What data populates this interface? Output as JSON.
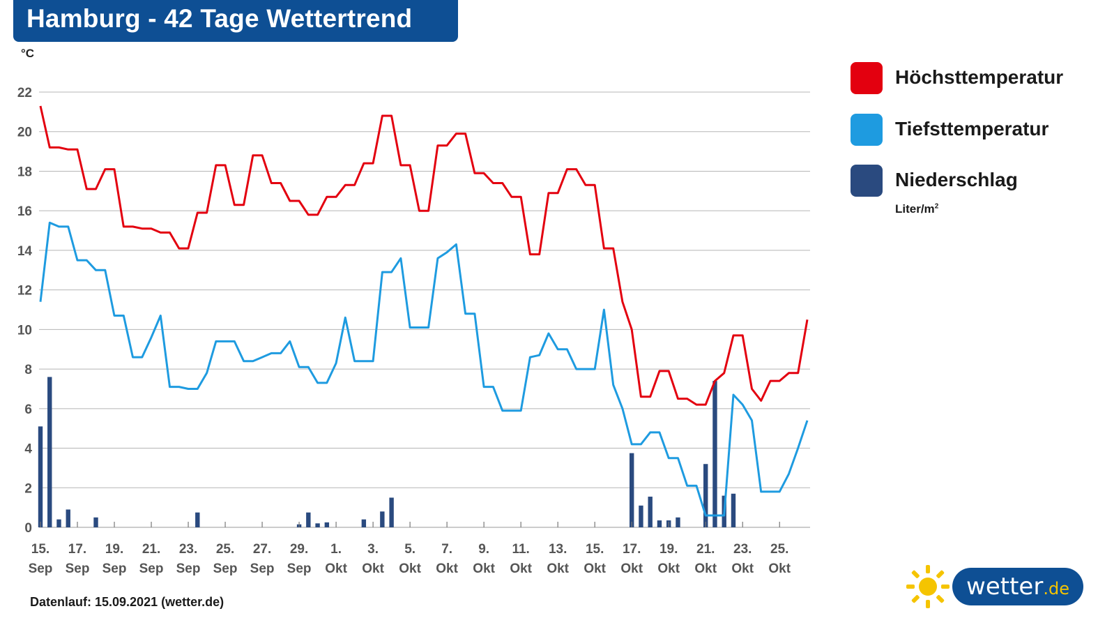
{
  "title": "Hamburg - 42 Tage Wettertrend",
  "y_unit": "°C",
  "footer": "Datenlauf: 15.09.2021 (wetter.de)",
  "logo": {
    "name": "wetter",
    "tld": ".de"
  },
  "legend": [
    {
      "label": "Höchsttemperatur",
      "color": "#e3000f"
    },
    {
      "label": "Tiefsttemperatur",
      "color": "#1e9be0"
    },
    {
      "label": "Niederschlag",
      "color": "#2a4a7f",
      "unit": "Liter/m",
      "unit_sup": "2"
    }
  ],
  "chart_data": {
    "type": "line",
    "ylim": [
      0,
      22
    ],
    "yticks": [
      "0",
      "2",
      "4",
      "6",
      "8",
      "10",
      "12",
      "14",
      "16",
      "18",
      "20",
      "22"
    ],
    "grid": true,
    "xticks": [
      {
        "day": "15.",
        "month": "Sep"
      },
      {
        "day": "17.",
        "month": "Sep"
      },
      {
        "day": "19.",
        "month": "Sep"
      },
      {
        "day": "21.",
        "month": "Sep"
      },
      {
        "day": "23.",
        "month": "Sep"
      },
      {
        "day": "25.",
        "month": "Sep"
      },
      {
        "day": "27.",
        "month": "Sep"
      },
      {
        "day": "29.",
        "month": "Sep"
      },
      {
        "day": "1.",
        "month": "Okt"
      },
      {
        "day": "3.",
        "month": "Okt"
      },
      {
        "day": "5.",
        "month": "Okt"
      },
      {
        "day": "7.",
        "month": "Okt"
      },
      {
        "day": "9.",
        "month": "Okt"
      },
      {
        "day": "11.",
        "month": "Okt"
      },
      {
        "day": "13.",
        "month": "Okt"
      },
      {
        "day": "15.",
        "month": "Okt"
      },
      {
        "day": "17.",
        "month": "Okt"
      },
      {
        "day": "19.",
        "month": "Okt"
      },
      {
        "day": "21.",
        "month": "Okt"
      },
      {
        "day": "23.",
        "month": "Okt"
      },
      {
        "day": "25.",
        "month": "Okt"
      }
    ],
    "series": [
      {
        "name": "Höchsttemperatur",
        "color": "#e3000f",
        "values": [
          [
            0,
            21.3
          ],
          [
            0.5,
            19.2
          ],
          [
            1,
            19.2
          ],
          [
            1.5,
            19.1
          ],
          [
            2,
            19.1
          ],
          [
            2.5,
            17.1
          ],
          [
            3,
            17.1
          ],
          [
            3.5,
            18.1
          ],
          [
            4,
            18.1
          ],
          [
            4.5,
            15.2
          ],
          [
            5,
            15.2
          ],
          [
            5.5,
            15.1
          ],
          [
            6,
            15.1
          ],
          [
            6.5,
            14.9
          ],
          [
            7,
            14.9
          ],
          [
            7.5,
            14.1
          ],
          [
            8,
            14.1
          ],
          [
            8.5,
            15.9
          ],
          [
            9,
            15.9
          ],
          [
            9.5,
            18.3
          ],
          [
            10,
            18.3
          ],
          [
            10.5,
            16.3
          ],
          [
            11,
            16.3
          ],
          [
            11.5,
            18.8
          ],
          [
            12,
            18.8
          ],
          [
            12.5,
            17.4
          ],
          [
            13,
            17.4
          ],
          [
            13.5,
            16.5
          ],
          [
            14,
            16.5
          ],
          [
            14.5,
            15.8
          ],
          [
            15,
            15.8
          ],
          [
            15.5,
            16.7
          ],
          [
            16,
            16.7
          ],
          [
            16.5,
            17.3
          ],
          [
            17,
            17.3
          ],
          [
            17.5,
            18.4
          ],
          [
            18,
            18.4
          ],
          [
            18.5,
            20.8
          ],
          [
            19,
            20.8
          ],
          [
            19.5,
            18.3
          ],
          [
            20,
            18.3
          ],
          [
            20.5,
            16.0
          ],
          [
            21,
            16.0
          ],
          [
            21.5,
            19.3
          ],
          [
            22,
            19.3
          ],
          [
            22.5,
            19.9
          ],
          [
            23,
            19.9
          ],
          [
            23.5,
            17.9
          ],
          [
            24,
            17.9
          ],
          [
            24.5,
            17.4
          ],
          [
            25,
            17.4
          ],
          [
            25.5,
            16.7
          ],
          [
            26,
            16.7
          ],
          [
            26.5,
            13.8
          ],
          [
            27,
            13.8
          ],
          [
            27.5,
            16.9
          ],
          [
            28,
            16.9
          ],
          [
            28.5,
            18.1
          ],
          [
            29,
            18.1
          ],
          [
            29.5,
            17.3
          ],
          [
            30,
            17.3
          ],
          [
            30.5,
            14.1
          ],
          [
            31,
            14.1
          ],
          [
            31.5,
            11.4
          ],
          [
            32,
            10.0
          ],
          [
            32.5,
            6.6
          ],
          [
            33,
            6.6
          ],
          [
            33.5,
            7.9
          ],
          [
            34,
            7.9
          ],
          [
            34.5,
            6.5
          ],
          [
            35,
            6.5
          ],
          [
            35.5,
            6.2
          ],
          [
            36,
            6.2
          ],
          [
            36.5,
            7.4
          ],
          [
            37,
            7.8
          ],
          [
            37.5,
            9.7
          ],
          [
            38,
            9.7
          ],
          [
            38.5,
            7.0
          ],
          [
            39,
            6.4
          ],
          [
            39.5,
            7.4
          ],
          [
            40,
            7.4
          ],
          [
            40.5,
            7.8
          ],
          [
            41,
            7.8
          ],
          [
            41.5,
            10.5
          ]
        ]
      },
      {
        "name": "Tiefsttemperatur",
        "color": "#1e9be0",
        "values": [
          [
            0,
            11.4
          ],
          [
            0.5,
            15.4
          ],
          [
            1,
            15.2
          ],
          [
            1.5,
            15.2
          ],
          [
            2,
            13.5
          ],
          [
            2.5,
            13.5
          ],
          [
            3,
            13.0
          ],
          [
            3.5,
            13.0
          ],
          [
            4,
            10.7
          ],
          [
            4.5,
            10.7
          ],
          [
            5,
            8.6
          ],
          [
            5.5,
            8.6
          ],
          [
            6,
            9.6
          ],
          [
            6.5,
            10.7
          ],
          [
            7,
            7.1
          ],
          [
            7.5,
            7.1
          ],
          [
            8,
            7.0
          ],
          [
            8.5,
            7.0
          ],
          [
            9,
            7.8
          ],
          [
            9.5,
            9.4
          ],
          [
            10,
            9.4
          ],
          [
            10.5,
            9.4
          ],
          [
            11,
            8.4
          ],
          [
            11.5,
            8.4
          ],
          [
            12,
            8.6
          ],
          [
            12.5,
            8.8
          ],
          [
            13,
            8.8
          ],
          [
            13.5,
            9.4
          ],
          [
            14,
            8.1
          ],
          [
            14.5,
            8.1
          ],
          [
            15,
            7.3
          ],
          [
            15.5,
            7.3
          ],
          [
            16,
            8.3
          ],
          [
            16.5,
            10.6
          ],
          [
            17,
            8.4
          ],
          [
            17.5,
            8.4
          ],
          [
            18,
            8.4
          ],
          [
            18.5,
            12.9
          ],
          [
            19,
            12.9
          ],
          [
            19.5,
            13.6
          ],
          [
            20,
            10.1
          ],
          [
            20.5,
            10.1
          ],
          [
            21,
            10.1
          ],
          [
            21.5,
            13.6
          ],
          [
            22,
            13.9
          ],
          [
            22.5,
            14.3
          ],
          [
            23,
            10.8
          ],
          [
            23.5,
            10.8
          ],
          [
            24,
            7.1
          ],
          [
            24.5,
            7.1
          ],
          [
            25,
            5.9
          ],
          [
            25.5,
            5.9
          ],
          [
            26,
            5.9
          ],
          [
            26.5,
            8.6
          ],
          [
            27,
            8.7
          ],
          [
            27.5,
            9.8
          ],
          [
            28,
            9.0
          ],
          [
            28.5,
            9.0
          ],
          [
            29,
            8.0
          ],
          [
            29.5,
            8.0
          ],
          [
            30,
            8.0
          ],
          [
            30.5,
            11.0
          ],
          [
            31,
            7.2
          ],
          [
            31.5,
            6.0
          ],
          [
            32,
            4.2
          ],
          [
            32.5,
            4.2
          ],
          [
            33,
            4.8
          ],
          [
            33.5,
            4.8
          ],
          [
            34,
            3.5
          ],
          [
            34.5,
            3.5
          ],
          [
            35,
            2.1
          ],
          [
            35.5,
            2.1
          ],
          [
            36,
            0.6
          ],
          [
            36.5,
            0.6
          ],
          [
            37,
            0.6
          ],
          [
            37.5,
            6.7
          ],
          [
            38,
            6.2
          ],
          [
            38.5,
            5.4
          ],
          [
            39,
            1.8
          ],
          [
            39.5,
            1.8
          ],
          [
            40,
            1.8
          ],
          [
            40.5,
            2.7
          ],
          [
            41,
            4.0
          ],
          [
            41.5,
            5.4
          ]
        ]
      },
      {
        "name": "Niederschlag",
        "color": "#2a4a7f",
        "type": "bar",
        "values": [
          [
            0,
            5.1
          ],
          [
            0.5,
            7.6
          ],
          [
            1,
            0.4
          ],
          [
            1.5,
            0.9
          ],
          [
            3,
            0.5
          ],
          [
            8.5,
            0.75
          ],
          [
            14,
            0.15
          ],
          [
            14.5,
            0.75
          ],
          [
            15,
            0.2
          ],
          [
            15.5,
            0.25
          ],
          [
            17.5,
            0.4
          ],
          [
            18.5,
            0.8
          ],
          [
            19,
            1.5
          ],
          [
            32,
            3.75
          ],
          [
            32.5,
            1.1
          ],
          [
            33,
            1.55
          ],
          [
            33.5,
            0.35
          ],
          [
            34,
            0.35
          ],
          [
            34.5,
            0.5
          ],
          [
            36,
            3.2
          ],
          [
            36.5,
            7.4
          ],
          [
            37,
            1.6
          ],
          [
            37.5,
            1.7
          ]
        ]
      }
    ]
  }
}
